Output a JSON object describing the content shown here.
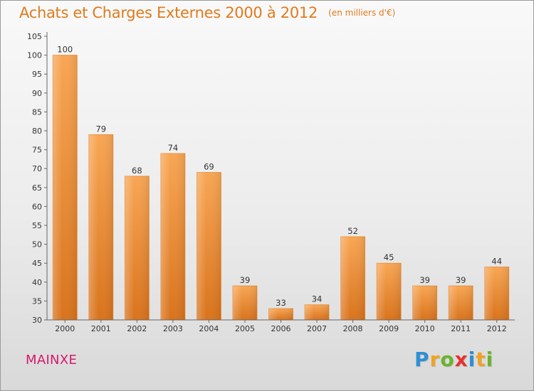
{
  "header": {
    "title": "Achats et Charges Externes 2000 à 2012",
    "subtitle": "(en milliers d'€)"
  },
  "chart_data": {
    "type": "bar",
    "title": "Achats et Charges Externes 2000 à 2012",
    "subtitle": "(en milliers d'€)",
    "xlabel": "",
    "ylabel": "",
    "categories": [
      "2000",
      "2001",
      "2002",
      "2003",
      "2004",
      "2005",
      "2006",
      "2007",
      "2008",
      "2009",
      "2010",
      "2011",
      "2012"
    ],
    "values": [
      100,
      79,
      68,
      74,
      69,
      39,
      33,
      34,
      52,
      45,
      39,
      39,
      44
    ],
    "ylim": [
      30,
      105
    ],
    "yticks": [
      30,
      35,
      40,
      45,
      50,
      55,
      60,
      65,
      70,
      75,
      80,
      85,
      90,
      95,
      100,
      105
    ],
    "grid": false,
    "legend": "none",
    "bar_color": "#f0943c"
  },
  "footer": {
    "commune": "MAINXE",
    "logo_letters": [
      "P",
      "r",
      "o",
      "x",
      "i",
      "t",
      "i"
    ],
    "logo_colors": [
      "#2d8fd5",
      "#f0a321",
      "#6ab42d",
      "#e8312f",
      "#2d8fd5",
      "#f0a321",
      "#6ab42d"
    ]
  }
}
